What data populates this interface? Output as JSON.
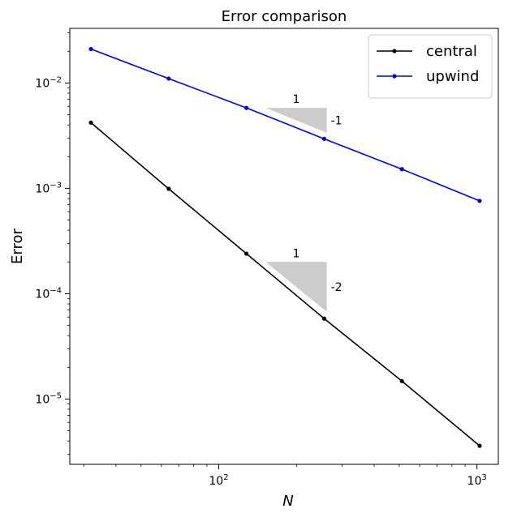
{
  "chart_data": {
    "type": "line",
    "title": "Error comparison",
    "xlabel": "N",
    "ylabel": "Error",
    "xscale": "log",
    "yscale": "log",
    "xlim": [
      26.5,
      1210
    ],
    "ylim": [
      2.4e-06,
      0.033
    ],
    "x_ticks": [
      {
        "value": 100,
        "base": "10",
        "exp": "2"
      },
      {
        "value": 1000,
        "base": "10",
        "exp": "3"
      }
    ],
    "y_ticks": [
      {
        "value": 1e-05,
        "base": "10",
        "exp": "−5"
      },
      {
        "value": 0.0001,
        "base": "10",
        "exp": "−4"
      },
      {
        "value": 0.001,
        "base": "10",
        "exp": "−3"
      },
      {
        "value": 0.01,
        "base": "10",
        "exp": "−2"
      }
    ],
    "grid": false,
    "legend_position": "top-right",
    "series": [
      {
        "name": "central",
        "color": "#000000",
        "x": [
          32,
          64,
          128,
          256,
          512,
          1024
        ],
        "y": [
          0.0042,
          0.00099,
          0.00024,
          5.8e-05,
          1.48e-05,
          3.6e-06
        ]
      },
      {
        "name": "upwind",
        "color": "#0000ee",
        "x": [
          32,
          64,
          128,
          256,
          512,
          1024
        ],
        "y": [
          0.021,
          0.011,
          0.0058,
          0.00295,
          0.00152,
          0.00076
        ]
      }
    ],
    "slope_triangles": [
      {
        "x_start": 152,
        "x_end": 262,
        "y_top": 0.0058,
        "slope": -1,
        "run_label": "1",
        "rise_label": "-1",
        "color": "#cccccc"
      },
      {
        "x_start": 152,
        "x_end": 262,
        "y_top": 0.0002,
        "slope": -2,
        "run_label": "1",
        "rise_label": "-2",
        "color": "#cccccc"
      }
    ]
  }
}
